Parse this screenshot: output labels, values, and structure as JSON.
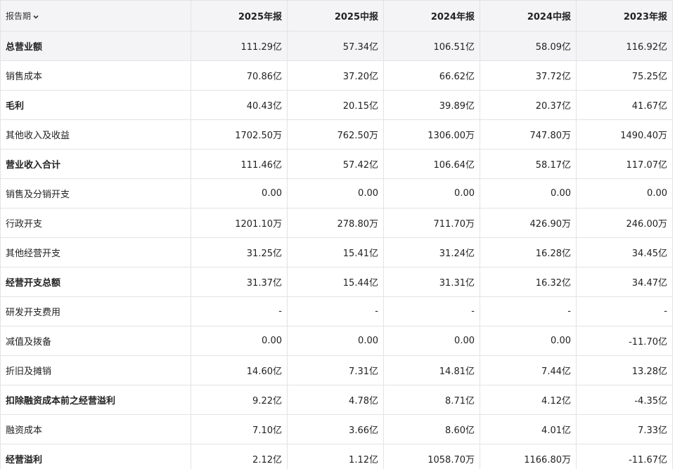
{
  "table": {
    "corner": "报告期",
    "columns": [
      "2025年报",
      "2025中报",
      "2024年报",
      "2024中报",
      "2023年报"
    ],
    "rows": [
      {
        "label": "总营业额",
        "bold": true,
        "values": [
          "111.29亿",
          "57.34亿",
          "106.51亿",
          "58.09亿",
          "116.92亿"
        ]
      },
      {
        "label": "销售成本",
        "bold": false,
        "values": [
          "70.86亿",
          "37.20亿",
          "66.62亿",
          "37.72亿",
          "75.25亿"
        ]
      },
      {
        "label": "毛利",
        "bold": true,
        "values": [
          "40.43亿",
          "20.15亿",
          "39.89亿",
          "20.37亿",
          "41.67亿"
        ]
      },
      {
        "label": "其他收入及收益",
        "bold": false,
        "values": [
          "1702.50万",
          "762.50万",
          "1306.00万",
          "747.80万",
          "1490.40万"
        ]
      },
      {
        "label": "营业收入合计",
        "bold": true,
        "values": [
          "111.46亿",
          "57.42亿",
          "106.64亿",
          "58.17亿",
          "117.07亿"
        ]
      },
      {
        "label": "销售及分销开支",
        "bold": false,
        "values": [
          "0.00",
          "0.00",
          "0.00",
          "0.00",
          "0.00"
        ]
      },
      {
        "label": "行政开支",
        "bold": false,
        "values": [
          "1201.10万",
          "278.80万",
          "711.70万",
          "426.90万",
          "246.00万"
        ]
      },
      {
        "label": "其他经营开支",
        "bold": false,
        "values": [
          "31.25亿",
          "15.41亿",
          "31.24亿",
          "16.28亿",
          "34.45亿"
        ]
      },
      {
        "label": "经营开支总额",
        "bold": true,
        "values": [
          "31.37亿",
          "15.44亿",
          "31.31亿",
          "16.32亿",
          "34.47亿"
        ]
      },
      {
        "label": "研发开支费用",
        "bold": false,
        "values": [
          "-",
          "-",
          "-",
          "-",
          "-"
        ]
      },
      {
        "label": "减值及拨备",
        "bold": false,
        "values": [
          "0.00",
          "0.00",
          "0.00",
          "0.00",
          "-11.70亿"
        ]
      },
      {
        "label": "折旧及摊销",
        "bold": false,
        "values": [
          "14.60亿",
          "7.31亿",
          "14.81亿",
          "7.44亿",
          "13.28亿"
        ]
      },
      {
        "label": "扣除融资成本前之经营溢利",
        "bold": true,
        "values": [
          "9.22亿",
          "4.78亿",
          "8.71亿",
          "4.12亿",
          "-4.35亿"
        ]
      },
      {
        "label": "融资成本",
        "bold": false,
        "values": [
          "7.10亿",
          "3.66亿",
          "8.60亿",
          "4.01亿",
          "7.33亿"
        ]
      },
      {
        "label": "经营溢利",
        "bold": true,
        "values": [
          "2.12亿",
          "1.12亿",
          "1058.70万",
          "1166.80万",
          "-11.67亿"
        ]
      }
    ]
  }
}
